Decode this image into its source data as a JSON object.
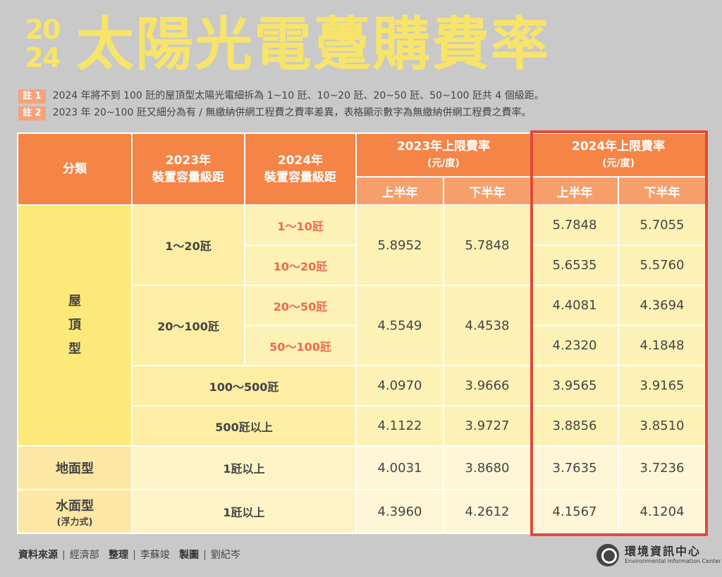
{
  "header": {
    "year_top": "20",
    "year_bottom": "24",
    "title": "太陽光電躉購費率"
  },
  "notes": [
    {
      "tag": "註 1",
      "text": "2024 年將不到 100 瓩的屋頂型太陽光電細拆為 1~10 瓩、10~20 瓩、20~50 瓩、50~100 瓩共 4 個級距。"
    },
    {
      "tag": "註 2",
      "text": "2023 年 20~100 瓩又細分為有 / 無繳納併網工程費之費率差異，表格顯示數字為無繳納併網工程費之費率。"
    }
  ],
  "table": {
    "headers": {
      "category": "分類",
      "range2023_line1": "2023年",
      "range2023_line2": "裝置容量級距",
      "range2024_line1": "2024年",
      "range2024_line2": "裝置容量級距",
      "rate2023_line1": "2023年上限費率",
      "rate2023_line2": "(元/度)",
      "rate2024_line1": "2024年上限費率",
      "rate2024_line2": "(元/度)",
      "first_half": "上半年",
      "second_half": "下半年"
    },
    "roof": {
      "cat1": "屋",
      "cat2": "頂",
      "cat3": "型",
      "g1_2023": "1～20瓩",
      "g1_rate_h1": "5.8952",
      "g1_rate_h2": "5.7848",
      "r1_2024": "1～10瓩",
      "r1_h1": "5.7848",
      "r1_h2": "5.7055",
      "r2_2024": "10～20瓩",
      "r2_h1": "5.6535",
      "r2_h2": "5.5760",
      "g2_2023": "20～100瓩",
      "g2_rate_h1": "4.5549",
      "g2_rate_h2": "4.4538",
      "r3_2024": "20～50瓩",
      "r3_h1": "4.4081",
      "r3_h2": "4.3694",
      "r4_2024": "50～100瓩",
      "r4_h1": "4.2320",
      "r4_h2": "4.1848",
      "r5_range": "100～500瓩",
      "r5_2023_h1": "4.0970",
      "r5_2023_h2": "3.9666",
      "r5_h1": "3.9565",
      "r5_h2": "3.9165",
      "r6_range": "500瓩以上",
      "r6_2023_h1": "4.1122",
      "r6_2023_h2": "3.9727",
      "r6_h1": "3.8856",
      "r6_h2": "3.8510"
    },
    "ground": {
      "category": "地面型",
      "range": "1瓩以上",
      "y2023_h1": "4.0031",
      "y2023_h2": "3.8680",
      "y2024_h1": "3.7635",
      "y2024_h2": "3.7236"
    },
    "water": {
      "category": "水面型",
      "category_sub": "(浮力式)",
      "range": "1瓩以上",
      "y2023_h1": "4.3960",
      "y2023_h2": "4.2612",
      "y2024_h1": "4.1567",
      "y2024_h2": "4.1204"
    }
  },
  "footer": {
    "source_label": "資料來源",
    "source": "經濟部",
    "editor_label": "整理",
    "editor": "李蘇竣",
    "designer_label": "製圖",
    "designer": "劉紀岑",
    "sep": "|",
    "brand_zh": "環境資訊中心",
    "brand_en": "Environmental Information Center"
  }
}
